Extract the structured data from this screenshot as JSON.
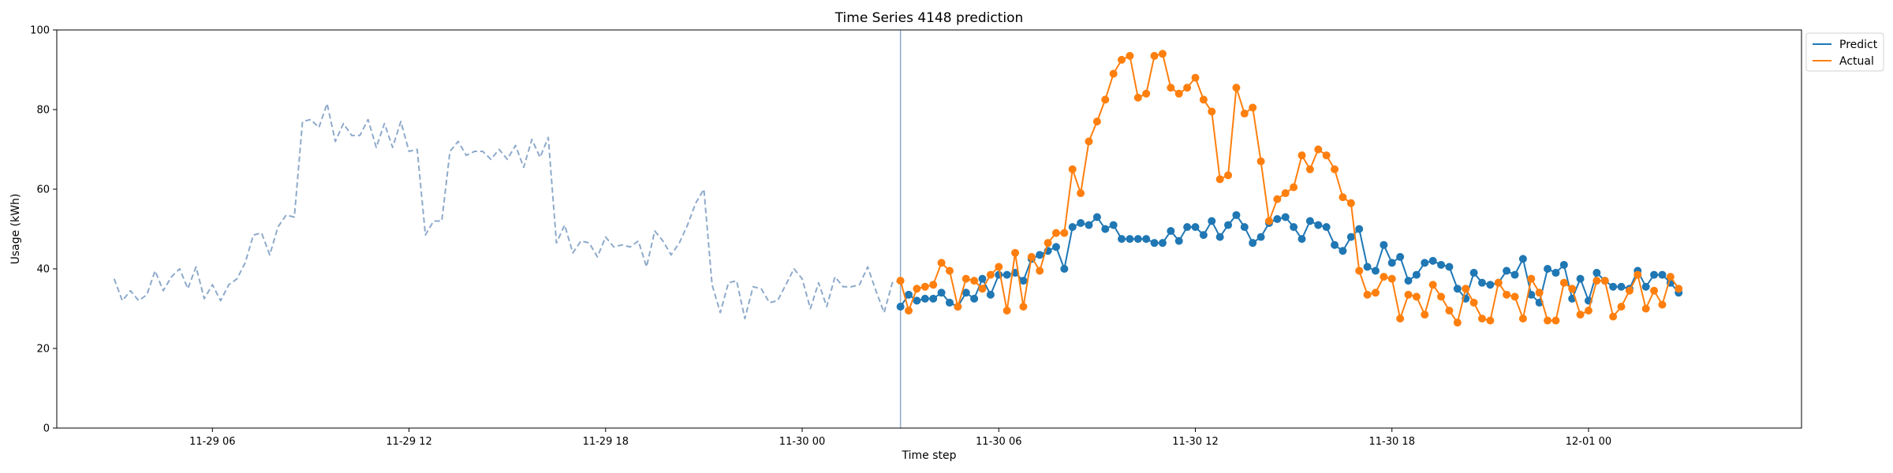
{
  "chart_data": {
    "type": "line",
    "title": "Time Series 4148 prediction",
    "xlabel": "Time step",
    "ylabel": "Usage (kWh)",
    "ylim": [
      0,
      100
    ],
    "yticks": [
      0,
      20,
      40,
      60,
      80,
      100
    ],
    "xlim": [
      "2024-11-29 01:15",
      "2024-12-01 06:30"
    ],
    "xticks": [
      {
        "label": "11-29 06",
        "value": "2024-11-29 06:00"
      },
      {
        "label": "11-29 12",
        "value": "2024-11-29 12:00"
      },
      {
        "label": "11-29 18",
        "value": "2024-11-29 18:00"
      },
      {
        "label": "11-30 00",
        "value": "2024-11-30 00:00"
      },
      {
        "label": "11-30 06",
        "value": "2024-11-30 06:00"
      },
      {
        "label": "11-30 12",
        "value": "2024-11-30 12:00"
      },
      {
        "label": "11-30 18",
        "value": "2024-11-30 18:00"
      },
      {
        "label": "12-01 00",
        "value": "2024-12-01 00:00"
      }
    ],
    "forecast_start": "2024-11-30 03:00",
    "legend_position": "top-right outside",
    "grid": false,
    "history": {
      "x_start": "2024-11-29 03:00",
      "x_step_minutes": 15,
      "color": "#8eaacb",
      "style": "dashed",
      "values": [
        37.5,
        32,
        34.5,
        32,
        33.5,
        39.5,
        34.5,
        38,
        40,
        35,
        40.5,
        32.5,
        36,
        32,
        36,
        37.5,
        41.5,
        48.5,
        49,
        43.5,
        50.5,
        53.5,
        53,
        77,
        77.5,
        75.5,
        81.5,
        72,
        76.5,
        73.5,
        73.5,
        77.5,
        70.5,
        76.5,
        70.5,
        77,
        69.5,
        70,
        48.5,
        52,
        52,
        69.5,
        72,
        68.5,
        69.5,
        69.5,
        67.5,
        70,
        67.5,
        71,
        65.5,
        72.5,
        68,
        73,
        46.5,
        51,
        44,
        47,
        46.5,
        43,
        48,
        45.5,
        46,
        45.5,
        47,
        40.5,
        49.5,
        47,
        43.5,
        46.5,
        51,
        56.5,
        60,
        36,
        29,
        36.5,
        37,
        27.5,
        35.5,
        35,
        31.5,
        32,
        36,
        40,
        37.5,
        30,
        36.5,
        30.5,
        38,
        35.5,
        35.5,
        36,
        40.5,
        34.5,
        29,
        36.5,
        37
      ]
    },
    "series": [
      {
        "name": "Predict",
        "color": "#1f77b4",
        "x_start": "2024-11-30 03:00",
        "x_step_minutes": 15,
        "values": [
          30.5,
          33.5,
          32,
          32.5,
          32.5,
          34,
          31.5,
          30.5,
          34,
          32.5,
          37.5,
          33.5,
          38.5,
          38.5,
          39,
          37,
          42.5,
          43.5,
          44.5,
          45.5,
          40,
          50.5,
          51.5,
          51,
          53,
          50,
          51,
          47.5,
          47.5,
          47.5,
          47.5,
          46.5,
          46.5,
          49.5,
          47,
          50.5,
          50.5,
          48.5,
          52,
          48,
          51,
          53.5,
          50.5,
          46.5,
          48,
          51.5,
          52.5,
          53,
          50.5,
          47.5,
          52,
          51,
          50.5,
          46,
          44.5,
          48,
          50,
          40.5,
          39.5,
          46,
          41.5,
          43,
          37,
          38.5,
          41.5,
          42,
          41,
          40.5,
          35,
          32.5,
          39,
          36.5,
          36,
          36.5,
          39.5,
          38.5,
          42.5,
          33.5,
          31.5,
          40,
          39,
          41,
          32.5,
          37.5,
          32,
          39,
          37,
          35.5,
          35.5,
          35,
          39.5,
          35.5,
          38.5,
          38.5,
          36.5,
          34
        ]
      },
      {
        "name": "Actual",
        "color": "#ff7f0e",
        "x_start": "2024-11-30 03:00",
        "x_step_minutes": 15,
        "values": [
          37,
          29.5,
          35,
          35.5,
          36,
          41.5,
          39.5,
          30.5,
          37.5,
          37,
          35,
          38.5,
          40.5,
          29.5,
          44,
          30.5,
          43,
          39.5,
          46.5,
          49,
          49,
          65,
          59,
          72,
          77,
          82.5,
          89,
          92.5,
          93.5,
          83,
          84,
          93.5,
          94,
          85.5,
          84,
          85.5,
          88,
          82.5,
          79.5,
          62.5,
          63.5,
          85.5,
          79,
          80.5,
          67,
          52,
          57.5,
          59,
          60.5,
          68.5,
          65,
          70,
          68.5,
          65,
          58,
          56.5,
          39.5,
          33.5,
          34,
          38,
          37.5,
          27.5,
          33.5,
          33,
          28.5,
          36,
          33,
          29.5,
          26.5,
          35,
          31.5,
          27.5,
          27,
          36.5,
          33.5,
          33,
          27.5,
          37.5,
          34,
          27,
          27,
          36.5,
          35,
          28.5,
          29.5,
          37,
          37,
          28,
          30.5,
          34.5,
          38.5,
          30,
          34.5,
          31,
          38,
          35
        ]
      }
    ]
  }
}
